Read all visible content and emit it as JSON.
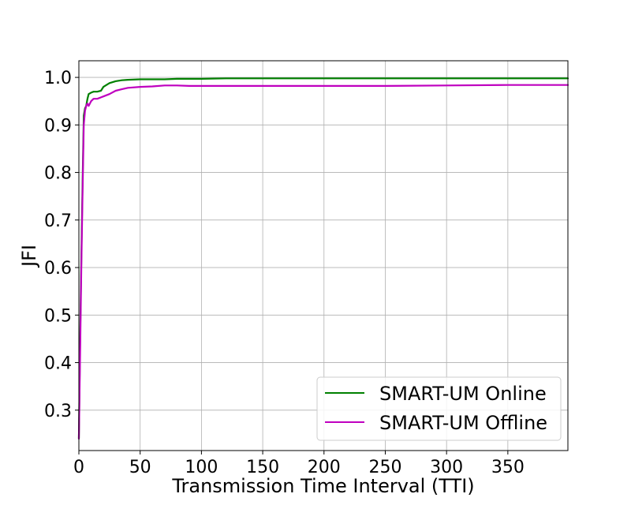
{
  "chart_data": {
    "type": "line",
    "title": "",
    "xlabel": "Transmission Time Interval (TTI)",
    "ylabel": "JFI",
    "xlim": [
      0,
      399
    ],
    "ylim": [
      0.215,
      1.035
    ],
    "xticks": [
      0,
      50,
      100,
      150,
      200,
      250,
      300,
      350
    ],
    "yticks": [
      0.3,
      0.4,
      0.5,
      0.6,
      0.7,
      0.8,
      0.9,
      1.0
    ],
    "grid": true,
    "legend_position": "bottom-right",
    "series": [
      {
        "name": "SMART-UM Online",
        "color": "#008000",
        "x": [
          0,
          1,
          2,
          3,
          4,
          5,
          6,
          7,
          8,
          10,
          12,
          15,
          18,
          20,
          25,
          30,
          35,
          40,
          50,
          60,
          70,
          80,
          90,
          100,
          120,
          150,
          200,
          250,
          300,
          350,
          399
        ],
        "y": [
          0.24,
          0.45,
          0.62,
          0.78,
          0.92,
          0.935,
          0.94,
          0.955,
          0.965,
          0.968,
          0.97,
          0.97,
          0.972,
          0.98,
          0.988,
          0.992,
          0.994,
          0.995,
          0.996,
          0.996,
          0.996,
          0.997,
          0.997,
          0.997,
          0.998,
          0.998,
          0.998,
          0.998,
          0.998,
          0.998,
          0.998
        ]
      },
      {
        "name": "SMART-UM Offline",
        "color": "#bf00bf",
        "x": [
          0,
          1,
          2,
          3,
          4,
          5,
          6,
          7,
          8,
          10,
          12,
          15,
          18,
          20,
          25,
          30,
          35,
          40,
          50,
          60,
          70,
          80,
          90,
          100,
          120,
          150,
          200,
          250,
          300,
          350,
          399
        ],
        "y": [
          0.24,
          0.42,
          0.6,
          0.76,
          0.9,
          0.93,
          0.94,
          0.945,
          0.94,
          0.95,
          0.955,
          0.955,
          0.958,
          0.96,
          0.965,
          0.972,
          0.975,
          0.978,
          0.98,
          0.981,
          0.983,
          0.983,
          0.982,
          0.982,
          0.982,
          0.982,
          0.982,
          0.982,
          0.983,
          0.984,
          0.984
        ]
      }
    ]
  }
}
